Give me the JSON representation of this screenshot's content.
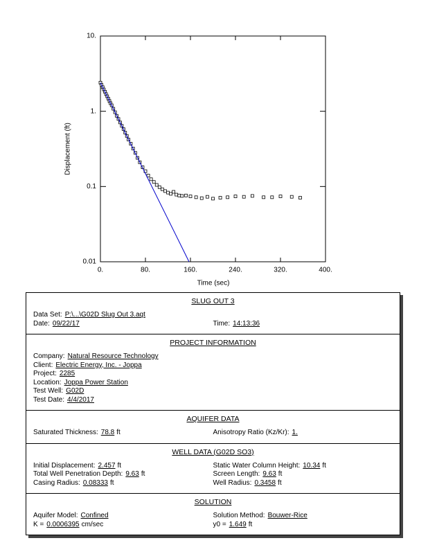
{
  "chart_data": {
    "type": "scatter",
    "xlabel": "Time (sec)",
    "ylabel": "Displacement (ft)",
    "xlim": [
      0,
      400
    ],
    "ylim": [
      0.01,
      10
    ],
    "ylog": true,
    "xticks": [
      {
        "value": 0,
        "label": "0."
      },
      {
        "value": 80,
        "label": "80."
      },
      {
        "value": 160,
        "label": "160."
      },
      {
        "value": 240,
        "label": "240."
      },
      {
        "value": 320,
        "label": "320."
      },
      {
        "value": 400,
        "label": "400."
      }
    ],
    "yticks": [
      0.01,
      0.1,
      {
        "value": 1,
        "label": "1."
      },
      {
        "value": 10,
        "label": "10."
      }
    ],
    "series": [
      {
        "style": "markers",
        "color": "#000000",
        "x": [
          0,
          2,
          4,
          6,
          8,
          10,
          12,
          14,
          16,
          18,
          20,
          23,
          26,
          29,
          32,
          35,
          38,
          41,
          44,
          47,
          50,
          54,
          58,
          62,
          66,
          70,
          75,
          80,
          85,
          90,
          95,
          100,
          105,
          110,
          115,
          120,
          125,
          130,
          135,
          140,
          145,
          152,
          160,
          170,
          180,
          190,
          200,
          213,
          226,
          240,
          255,
          270,
          290,
          305,
          320,
          340,
          355
        ],
        "values": [
          2.4,
          2.24,
          2.09,
          1.95,
          1.82,
          1.69,
          1.58,
          1.47,
          1.37,
          1.28,
          1.2,
          1.08,
          0.97,
          0.87,
          0.79,
          0.71,
          0.64,
          0.58,
          0.52,
          0.47,
          0.42,
          0.37,
          0.32,
          0.28,
          0.24,
          0.21,
          0.18,
          0.16,
          0.14,
          0.125,
          0.115,
          0.105,
          0.098,
          0.092,
          0.087,
          0.083,
          0.08,
          0.085,
          0.078,
          0.076,
          0.075,
          0.076,
          0.074,
          0.072,
          0.07,
          0.073,
          0.069,
          0.071,
          0.072,
          0.074,
          0.073,
          0.075,
          0.072,
          0.072,
          0.074,
          0.073,
          0.071
        ]
      },
      {
        "style": "line",
        "color": "#0000cc",
        "x": [
          0,
          157.5
        ],
        "values": [
          2.4,
          0.01
        ]
      }
    ]
  },
  "report": {
    "sections": [
      {
        "title": "SLUG OUT 3",
        "rows": [
          [
            {
              "label": "Data Set:",
              "value": "P:\\...\\G02D Slug Out 3.aqt"
            }
          ],
          [
            {
              "label": "Date:",
              "value": "09/22/17"
            },
            {
              "label": "Time:",
              "value": "14:13:36"
            }
          ]
        ]
      },
      {
        "title": "PROJECT INFORMATION",
        "rows": [
          [
            {
              "label": "Company:",
              "value": "Natural Resource Technology"
            }
          ],
          [
            {
              "label": "Client:",
              "value": "Electric Energy, Inc. - Joppa"
            }
          ],
          [
            {
              "label": "Project:",
              "value": "2285"
            }
          ],
          [
            {
              "label": "Location:",
              "value": "Joppa Power Station"
            }
          ],
          [
            {
              "label": "Test Well:",
              "value": "G02D"
            }
          ],
          [
            {
              "label": "Test Date:",
              "value": "4/4/2017"
            }
          ]
        ]
      },
      {
        "title": "AQUIFER DATA",
        "rows": [
          [
            {
              "label": "Saturated Thickness:",
              "value": "78.8",
              "unit": "ft"
            },
            {
              "label": "Anisotropy Ratio (Kz/Kr):",
              "value": "1."
            }
          ]
        ]
      },
      {
        "title": "WELL DATA (G02D SO3)",
        "rows": [
          [
            {
              "label": "Initial Displacement:",
              "value": "2.457",
              "unit": "ft"
            },
            {
              "label": "Static Water Column Height:",
              "value": "10.34",
              "unit": "ft"
            }
          ],
          [
            {
              "label": "Total Well Penetration Depth:",
              "value": "9.63",
              "unit": "ft"
            },
            {
              "label": "Screen Length:",
              "value": "9.63",
              "unit": "ft"
            }
          ],
          [
            {
              "label": "Casing Radius:",
              "value": "0.08333",
              "unit": "ft"
            },
            {
              "label": "Well Radius:",
              "value": "0.3458",
              "unit": "ft"
            }
          ]
        ]
      },
      {
        "title": "SOLUTION",
        "rows": [
          [
            {
              "label": "Aquifer Model:",
              "value": "Confined"
            },
            {
              "label": "Solution Method:",
              "value": "Bouwer-Rice"
            }
          ],
          [
            {
              "label": "K =",
              "value": "0.0006395",
              "unit": "cm/sec"
            },
            {
              "label": "y0 =",
              "value": "1.649",
              "unit": "ft"
            }
          ]
        ]
      }
    ]
  }
}
